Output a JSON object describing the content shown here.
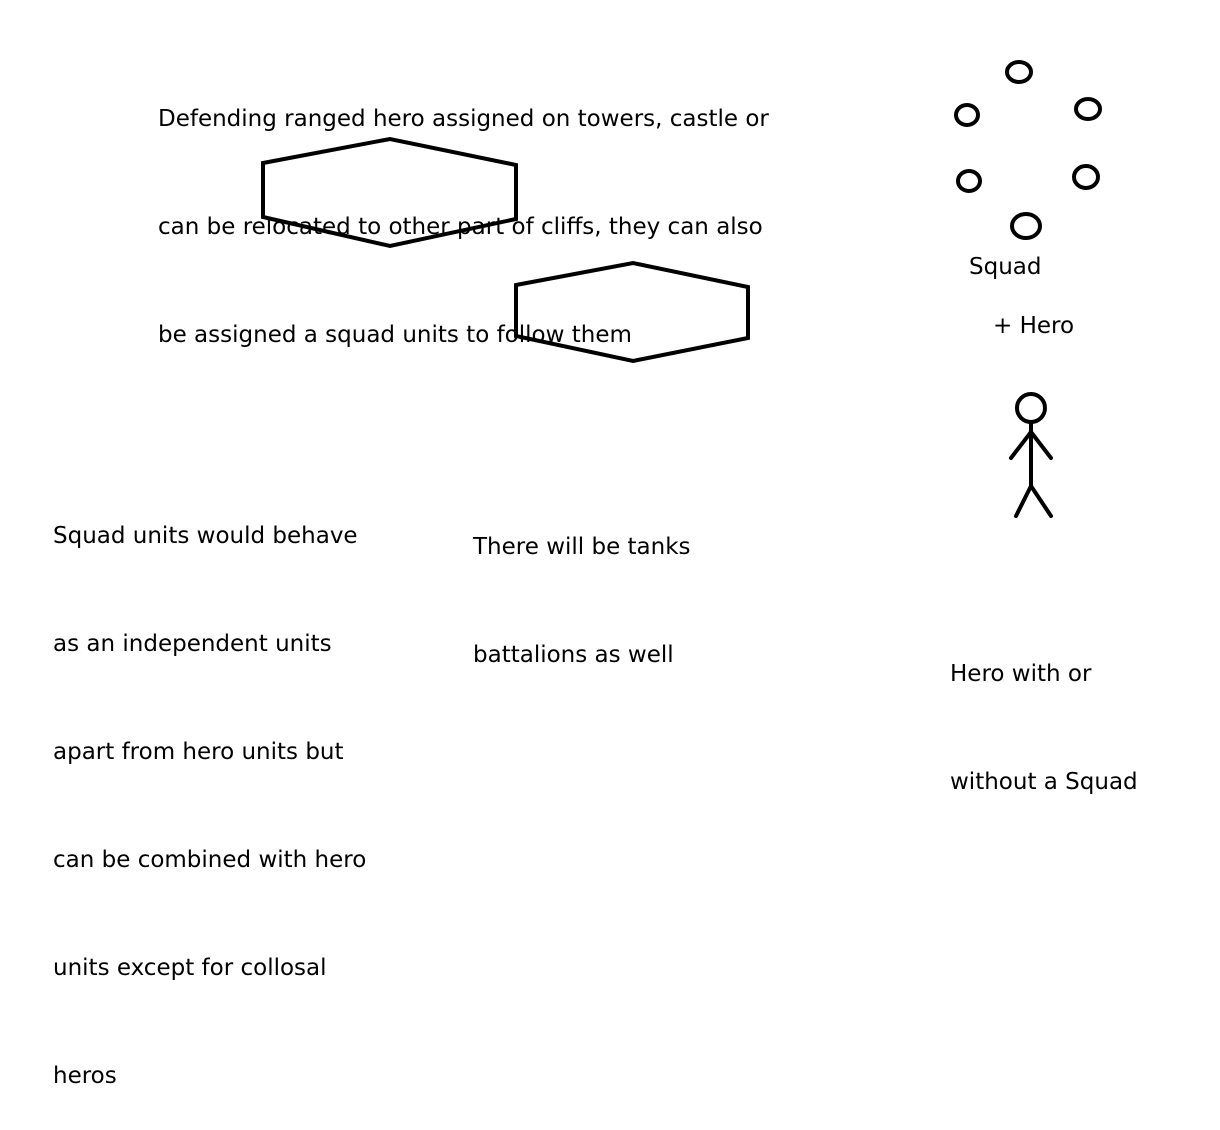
{
  "notes": {
    "defending": {
      "lines": [
        "Defending ranged hero assigned on towers, castle or",
        "can be relocated to other part of cliffs, they can also",
        "be assigned a squad units to follow them"
      ]
    },
    "squad_units": {
      "lines": [
        "Squad units would behave",
        "as an independent units",
        "apart from hero units but",
        "can be combined with hero",
        "units except for collosal",
        "heros"
      ]
    },
    "tanks": {
      "lines": [
        "There will be tanks",
        "battalions as well"
      ]
    },
    "hero_squad": {
      "lines": [
        "Hero with or",
        "without a Squad"
      ]
    }
  },
  "labels": {
    "squad": "Squad",
    "plus_hero": "+ Hero"
  },
  "shapes": {
    "hexagons": [
      "hexagon",
      "hexagon"
    ],
    "squad_member_count": 6,
    "hero_figure": "stick-figure"
  },
  "colors": {
    "stroke": "#000000",
    "background": "#ffffff"
  }
}
